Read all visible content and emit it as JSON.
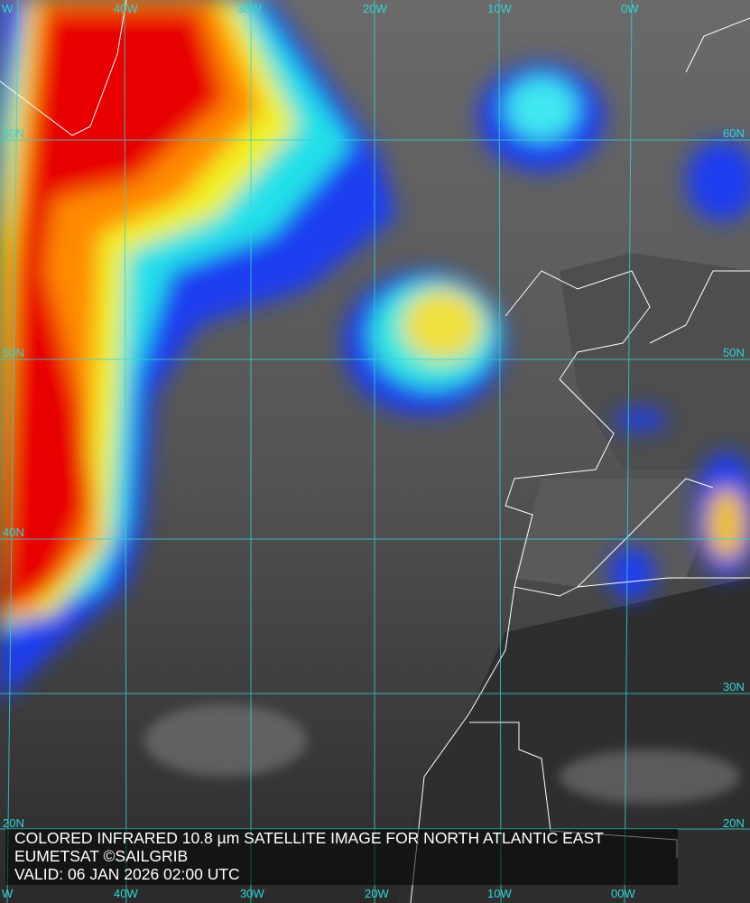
{
  "map": {
    "title": "COLORED INFRARED 10.8 µm SATELLITE IMAGE FOR NORTH ATLANTIC EAST",
    "credit": "EUMETSAT ©SAILGRIB",
    "valid": "VALID:  06 JAN 2026 02:00 UTC",
    "longitude_labels_top": [
      "W",
      "40W",
      "30W",
      "20W",
      "10W",
      "0W"
    ],
    "longitude_labels_bottom": [
      "W",
      "40W",
      "30W",
      "20W",
      "10W",
      "00W"
    ],
    "latitude_labels_left": [
      "60N",
      "50N",
      "40N",
      "20N"
    ],
    "latitude_labels_right": [
      "60N",
      "50N",
      "30N",
      "20N"
    ],
    "colors": {
      "grid": "#2fd6d6",
      "coast": "#ffffff",
      "cold_top": "#e00000",
      "mid": "#ffff00",
      "low": "#0020d0"
    }
  }
}
